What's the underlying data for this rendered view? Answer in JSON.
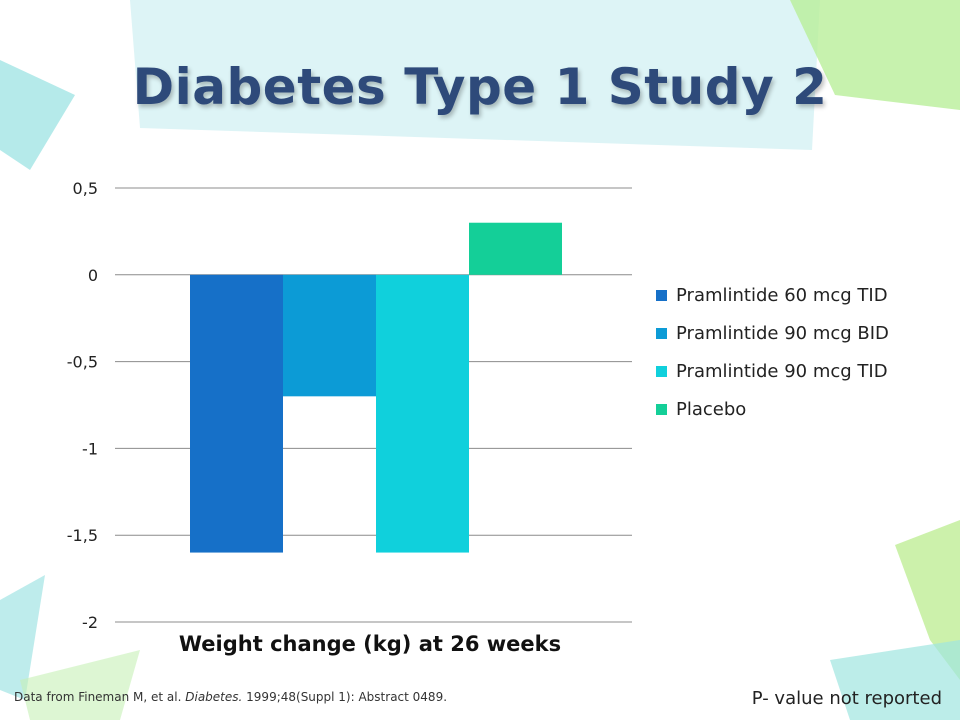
{
  "slide": {
    "title": "Diabetes Type 1 Study 2",
    "source_prefix": "Data from Fineman M, et al.",
    "source_journal": "Diabetes.",
    "source_suffix": " 1999;48(Suppl 1): Abstract 0489.",
    "pvalue_note": "P- value not reported"
  },
  "chart_data": {
    "type": "bar",
    "title": "",
    "xlabel": "Weight change (kg) at 26 weeks",
    "ylabel": "",
    "ylim": [
      -2,
      0.5
    ],
    "y_ticks": [
      0.5,
      0,
      -0.5,
      -1,
      -1.5,
      -2
    ],
    "y_tick_labels": [
      "0,5",
      "0",
      "-0,5",
      "-1",
      "-1,5",
      "-2"
    ],
    "grid": true,
    "legend_position": "right",
    "categories": [
      "Weight change (kg) at 26 weeks"
    ],
    "series": [
      {
        "name": "Pramlintide 60 mcg TID",
        "values": [
          -1.6
        ],
        "color": "#1670c8"
      },
      {
        "name": "Pramlintide 90 mcg BID",
        "values": [
          -0.7
        ],
        "color": "#0c9bd6"
      },
      {
        "name": "Pramlintide 90 mcg TID",
        "values": [
          -1.6
        ],
        "color": "#10d0dc"
      },
      {
        "name": "Placebo",
        "values": [
          0.3
        ],
        "color": "#14cf98"
      }
    ]
  }
}
